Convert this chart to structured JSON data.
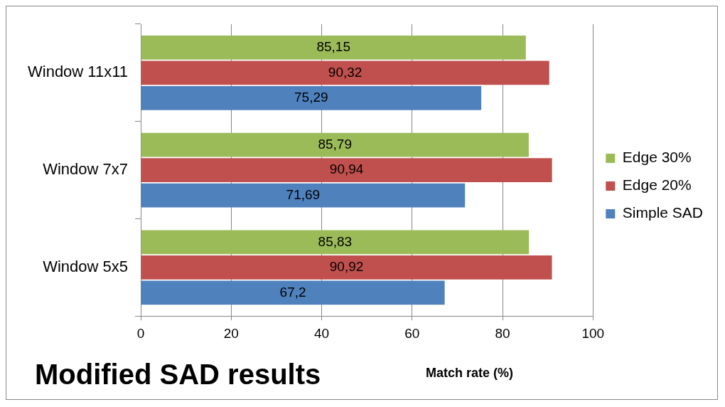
{
  "chart_data": {
    "type": "bar",
    "orientation": "horizontal",
    "title": "Modified SAD results",
    "xlabel": "Match rate (%)",
    "categories": [
      "Window 11x11",
      "Window 7x7",
      "Window 5x5"
    ],
    "series": [
      {
        "name": "Edge 30%",
        "color": "#9bbb59",
        "values": [
          85.15,
          85.79,
          85.83
        ],
        "value_labels": [
          "85,15",
          "85,79",
          "85,83"
        ]
      },
      {
        "name": "Edge 20%",
        "color": "#c0504d",
        "values": [
          90.32,
          90.94,
          90.92
        ],
        "value_labels": [
          "90,32",
          "90,94",
          "90,92"
        ]
      },
      {
        "name": "Simple SAD",
        "color": "#4f81bd",
        "values": [
          75.29,
          71.69,
          67.2
        ],
        "value_labels": [
          "75,29",
          "71,69",
          "67,2"
        ]
      }
    ],
    "xlim": [
      0,
      100
    ],
    "xticks": [
      0,
      20,
      40,
      60,
      80,
      100
    ],
    "grid": "x",
    "legend": "right"
  }
}
